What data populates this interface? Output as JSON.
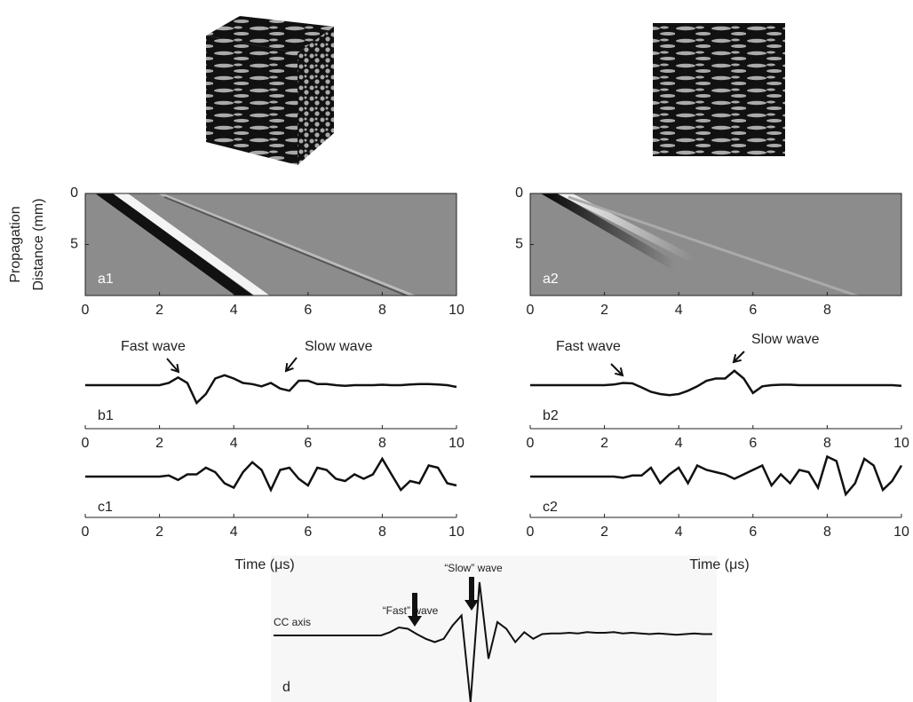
{
  "chart_data": [
    {
      "type": "heatmap",
      "panel_label": "a1",
      "ylabel": [
        "Propagation",
        "Distance (mm)"
      ],
      "xlim": [
        0,
        10
      ],
      "ylim": [
        10,
        0
      ],
      "xticks": [
        0,
        2,
        4,
        6,
        8,
        10
      ],
      "yticks": [
        0,
        5
      ]
    },
    {
      "type": "heatmap",
      "panel_label": "a2",
      "xlim": [
        0,
        10
      ],
      "ylim": [
        10,
        0
      ],
      "xticks": [
        0,
        2,
        4,
        6,
        8
      ],
      "yticks": [
        0,
        5
      ]
    },
    {
      "type": "line",
      "panel_label": "b1",
      "color": "#111111",
      "xlim": [
        0,
        10
      ],
      "ylim": [
        -1,
        1
      ],
      "xticks": [
        0,
        2,
        4,
        6,
        8,
        10
      ],
      "annotations": [
        "Fast wave",
        "Slow wave"
      ],
      "x": [
        0,
        0.25,
        0.5,
        0.75,
        1,
        1.25,
        1.5,
        1.75,
        2,
        2.25,
        2.5,
        2.75,
        3,
        3.25,
        3.5,
        3.75,
        4,
        4.25,
        4.5,
        4.75,
        5,
        5.25,
        5.5,
        5.75,
        6,
        6.25,
        6.5,
        6.75,
        7,
        7.25,
        7.5,
        7.75,
        8,
        8.25,
        8.5,
        8.75,
        9,
        9.25,
        9.5,
        9.75,
        10
      ],
      "values": [
        0,
        0,
        0,
        0,
        0,
        0,
        0,
        0,
        0,
        0.1,
        0.35,
        0.1,
        -0.8,
        -0.4,
        0.3,
        0.45,
        0.3,
        0.1,
        0.05,
        -0.05,
        0.1,
        -0.15,
        -0.25,
        0.2,
        0.2,
        0.05,
        0.05,
        0,
        -0.03,
        0,
        0,
        0,
        0.02,
        0,
        0,
        0.03,
        0.05,
        0.05,
        0.03,
        0,
        -0.08
      ]
    },
    {
      "type": "line",
      "panel_label": "b2",
      "color": "#111111",
      "xlim": [
        0,
        10
      ],
      "ylim": [
        -1,
        1
      ],
      "xticks": [
        0,
        2,
        4,
        6,
        8,
        10
      ],
      "annotations": [
        "Fast wave",
        "Slow wave"
      ],
      "x": [
        0,
        0.25,
        0.5,
        0.75,
        1,
        1.25,
        1.5,
        1.75,
        2,
        2.25,
        2.5,
        2.75,
        3,
        3.25,
        3.5,
        3.75,
        4,
        4.25,
        4.5,
        4.75,
        5,
        5.25,
        5.5,
        5.75,
        6,
        6.25,
        6.5,
        6.75,
        7,
        7.25,
        7.5,
        7.75,
        8,
        8.25,
        8.5,
        8.75,
        9,
        9.25,
        9.5,
        9.75,
        10
      ],
      "values": [
        0,
        0,
        0,
        0,
        0,
        0,
        0,
        0,
        0,
        0.03,
        0.1,
        0.08,
        -0.1,
        -0.3,
        -0.4,
        -0.45,
        -0.4,
        -0.25,
        -0.05,
        0.2,
        0.3,
        0.3,
        0.65,
        0.3,
        -0.35,
        -0.05,
        0,
        0.02,
        0.02,
        0,
        0,
        0,
        0,
        0,
        0,
        0,
        0,
        0,
        0,
        0,
        -0.03
      ]
    },
    {
      "type": "line",
      "panel_label": "c1",
      "color": "#111111",
      "xlabel": "Time (μs)",
      "xlim": [
        0,
        10
      ],
      "ylim": [
        -1,
        1
      ],
      "xticks": [
        0,
        2,
        4,
        6,
        8,
        10
      ],
      "x": [
        0,
        0.25,
        0.5,
        0.75,
        1,
        1.25,
        1.5,
        1.75,
        2,
        2.25,
        2.5,
        2.75,
        3,
        3.25,
        3.5,
        3.75,
        4,
        4.25,
        4.5,
        4.75,
        5,
        5.25,
        5.5,
        5.75,
        6,
        6.25,
        6.5,
        6.75,
        7,
        7.25,
        7.5,
        7.75,
        8,
        8.25,
        8.5,
        8.75,
        9,
        9.25,
        9.5,
        9.75,
        10
      ],
      "values": [
        0,
        0,
        0,
        0,
        0,
        0,
        0,
        0,
        0,
        0.05,
        -0.15,
        0.1,
        0.1,
        0.4,
        0.2,
        -0.3,
        -0.5,
        0.2,
        0.65,
        0.3,
        -0.6,
        0.3,
        0.4,
        -0.1,
        -0.4,
        0.4,
        0.3,
        -0.1,
        -0.2,
        0.1,
        -0.1,
        0.1,
        0.8,
        0.1,
        -0.6,
        -0.2,
        -0.3,
        0.5,
        0.4,
        -0.3,
        -0.4
      ]
    },
    {
      "type": "line",
      "panel_label": "c2",
      "color": "#111111",
      "xlabel": "Time (μs)",
      "xlim": [
        0,
        10
      ],
      "ylim": [
        -1,
        1
      ],
      "xticks": [
        0,
        2,
        4,
        6,
        8,
        10
      ],
      "x": [
        0,
        0.25,
        0.5,
        0.75,
        1,
        1.25,
        1.5,
        1.75,
        2,
        2.25,
        2.5,
        2.75,
        3,
        3.25,
        3.5,
        3.75,
        4,
        4.25,
        4.5,
        4.75,
        5,
        5.25,
        5.5,
        5.75,
        6,
        6.25,
        6.5,
        6.75,
        7,
        7.25,
        7.5,
        7.75,
        8,
        8.25,
        8.5,
        8.75,
        9,
        9.25,
        9.5,
        9.75,
        10
      ],
      "values": [
        0,
        0,
        0,
        0,
        0,
        0,
        0,
        0,
        0,
        0,
        -0.05,
        0.05,
        0.05,
        0.4,
        -0.3,
        0.1,
        0.4,
        -0.3,
        0.5,
        0.3,
        0.2,
        0.1,
        -0.1,
        0.1,
        0.3,
        0.5,
        -0.4,
        0.1,
        -0.3,
        0.3,
        0.2,
        -0.5,
        0.9,
        0.7,
        -0.8,
        -0.3,
        0.8,
        0.5,
        -0.6,
        -0.2,
        0.5
      ]
    },
    {
      "type": "trace",
      "panel_label": "d",
      "axis_label": "CC axis",
      "color": "#111111",
      "ylim": [
        -1,
        1
      ],
      "annotations": [
        "“Fast” wave",
        "“Slow” wave"
      ],
      "values": [
        0,
        0,
        0,
        0,
        0,
        0,
        0,
        0,
        0,
        0,
        0,
        0,
        0,
        0.05,
        0.12,
        0.1,
        0.02,
        -0.05,
        -0.1,
        -0.05,
        0.15,
        0.3,
        -1,
        0.8,
        -0.35,
        0.2,
        0.1,
        -0.1,
        0.05,
        -0.05,
        0.02,
        0.03,
        0.03,
        0.04,
        0.03,
        0.05,
        0.04,
        0.04,
        0.05,
        0.03,
        0.04,
        0.03,
        0.02,
        0.03,
        0.02,
        0.01,
        0.02,
        0.03,
        0.02,
        0.02
      ]
    }
  ]
}
